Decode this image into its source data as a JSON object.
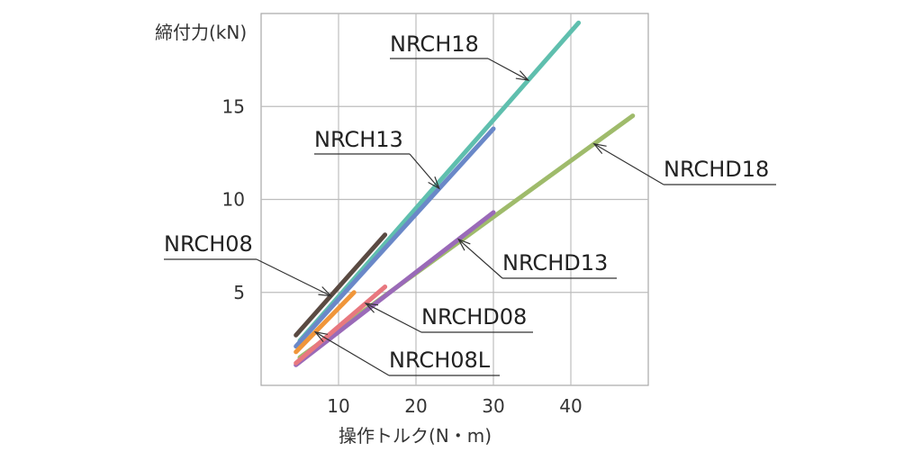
{
  "chart_data": {
    "type": "line",
    "ylabel": "締付力(kN)",
    "xlabel": "操作トルク(N・m)",
    "xlim": [
      0,
      50
    ],
    "ylim": [
      0,
      20
    ],
    "xticks": [
      "10",
      "20",
      "30",
      "40"
    ],
    "yticks": [
      "5",
      "10",
      "15"
    ],
    "grid": true,
    "series": [
      {
        "name": "NRCH18",
        "color": "#5fbfae",
        "x": [
          5,
          41
        ],
        "y": [
          2.4,
          19.5
        ],
        "label_at_x": 34.5
      },
      {
        "name": "NRCH13",
        "color": "#6a88c8",
        "x": [
          4.5,
          30
        ],
        "y": [
          2.1,
          13.8
        ],
        "label_at_x": 23
      },
      {
        "name": "NRCHD18",
        "color": "#9fbb6b",
        "x": [
          5,
          48
        ],
        "y": [
          1.5,
          14.5
        ],
        "label_at_x": 43
      },
      {
        "name": "NRCHD13",
        "color": "#9a6ab8",
        "x": [
          4.5,
          30
        ],
        "y": [
          1.1,
          9.3
        ],
        "label_at_x": 25.5
      },
      {
        "name": "NRCH08",
        "color": "#5a4a42",
        "x": [
          4.5,
          16
        ],
        "y": [
          2.7,
          8.1
        ],
        "label_at_x": 9
      },
      {
        "name": "NRCHD08",
        "color": "#e8787f",
        "x": [
          4.5,
          16
        ],
        "y": [
          1.2,
          5.3
        ],
        "label_at_x": 13.5
      },
      {
        "name": "NRCH08L",
        "color": "#f0963a",
        "x": [
          4.5,
          12
        ],
        "y": [
          1.8,
          5.0
        ],
        "label_at_x": 7
      }
    ]
  }
}
